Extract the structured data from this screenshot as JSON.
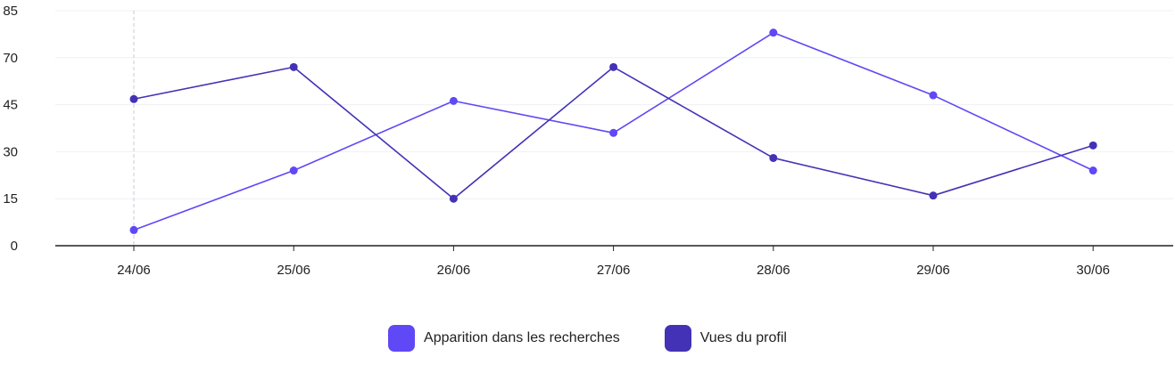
{
  "chart_data": {
    "type": "line",
    "x": [
      "24/06",
      "25/06",
      "26/06",
      "27/06",
      "28/06",
      "29/06",
      "30/06"
    ],
    "ylim": [
      0,
      85
    ],
    "yticks": [
      0,
      15,
      30,
      45,
      70,
      85
    ],
    "grid": true,
    "legend_position": "bottom-center",
    "series": [
      {
        "name": "Apparition dans les recherches",
        "color": "#5f48f5",
        "values": [
          5,
          24,
          47,
          36,
          78,
          50,
          24
        ]
      },
      {
        "name": "Vues du profil",
        "color": "#4332b5",
        "values": [
          48,
          65,
          15,
          65,
          28,
          16,
          32
        ]
      }
    ]
  }
}
